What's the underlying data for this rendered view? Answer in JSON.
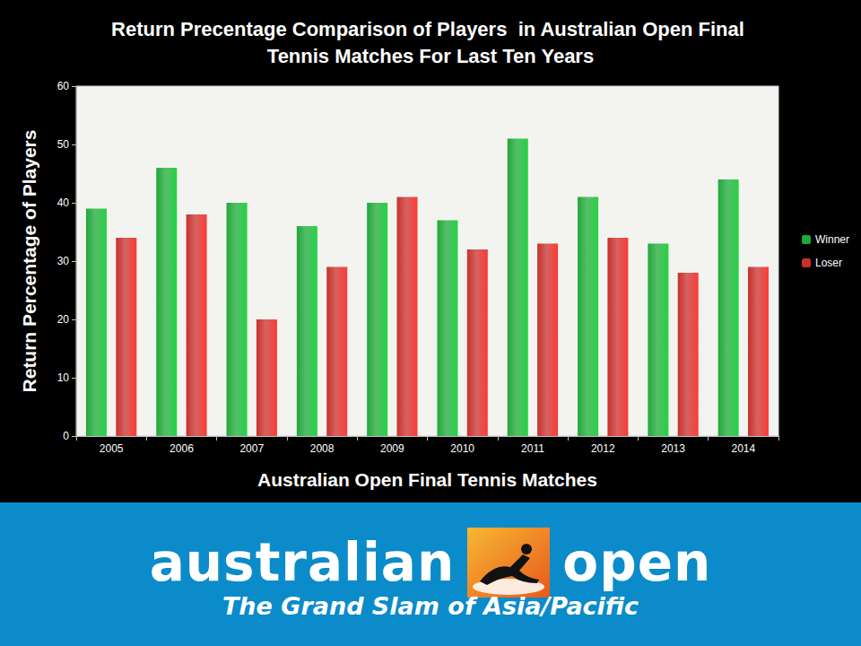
{
  "chart_data": {
    "type": "bar",
    "title": "Return Precentage Comparison of Players  in Australian Open Final Tennis Matches For Last Ten Years",
    "x_label": "Australian Open Final Tennis Matches",
    "y_label": "Return Percentage of Players",
    "categories": [
      "2005",
      "2006",
      "2007",
      "2008",
      "2009",
      "2010",
      "2011",
      "2012",
      "2013",
      "2014"
    ],
    "series": [
      {
        "name": "Winner",
        "color": "#1ea838",
        "values": [
          39,
          46,
          40,
          36,
          40,
          37,
          51,
          41,
          33,
          44
        ]
      },
      {
        "name": "Loser",
        "color": "#c8302c",
        "values": [
          34,
          38,
          20,
          29,
          41,
          32,
          33,
          34,
          28,
          29
        ]
      }
    ],
    "ylim": [
      0,
      60
    ],
    "yticks": [
      0,
      10,
      20,
      30,
      40,
      50,
      60
    ],
    "grid": false,
    "legend": "right"
  },
  "banner": {
    "brand_left": "australian",
    "brand_right": "open",
    "tagline": "The Grand Slam of Asia/Pacific"
  }
}
